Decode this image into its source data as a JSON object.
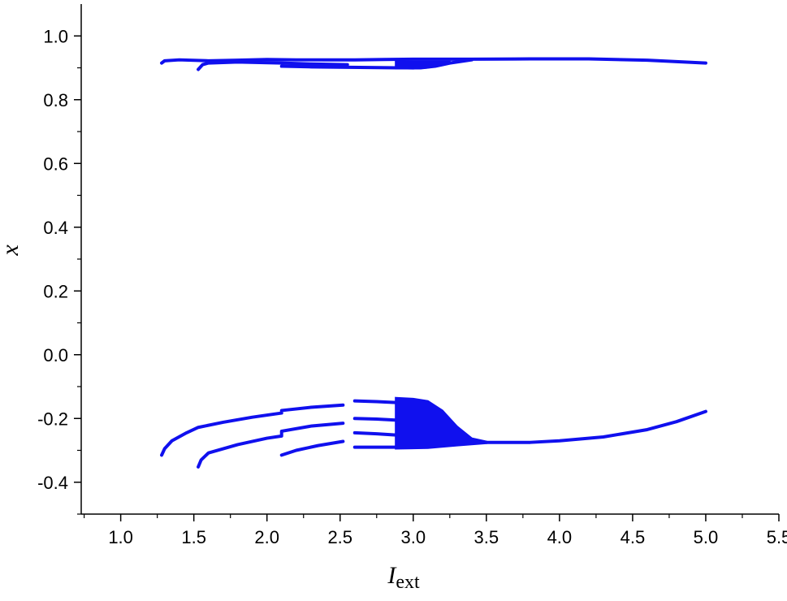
{
  "chart_data": {
    "type": "scatter",
    "title": "",
    "xlabel": "I",
    "xlabel_subscript": "ext",
    "ylabel": "x",
    "xlim": [
      0.73,
      5.5
    ],
    "ylim": [
      -0.5,
      1.1
    ],
    "x_ticks": [
      "1.0",
      "1.5",
      "2.0",
      "2.5",
      "3.0",
      "3.5",
      "4.0",
      "4.5",
      "5.0",
      "5.5"
    ],
    "y_ticks": [
      "-0.4",
      "-0.2",
      "0.0",
      "0.2",
      "0.4",
      "0.6",
      "0.8",
      "1.0"
    ],
    "grid": false,
    "legend": "none",
    "marker_color": "#1010ee",
    "series": [
      {
        "values": [
          {
            "x": 1.28,
            "y": 0.915
          },
          {
            "x": 1.3,
            "y": 0.922
          },
          {
            "x": 1.4,
            "y": 0.925
          },
          {
            "x": 1.6,
            "y": 0.922
          },
          {
            "x": 1.8,
            "y": 0.924
          },
          {
            "x": 2.0,
            "y": 0.926
          },
          {
            "x": 2.2,
            "y": 0.925
          },
          {
            "x": 2.4,
            "y": 0.925
          },
          {
            "x": 2.6,
            "y": 0.925
          },
          {
            "x": 2.8,
            "y": 0.926
          },
          {
            "x": 3.0,
            "y": 0.927
          },
          {
            "x": 3.4,
            "y": 0.927
          },
          {
            "x": 3.8,
            "y": 0.928
          },
          {
            "x": 4.2,
            "y": 0.928
          },
          {
            "x": 4.6,
            "y": 0.924
          },
          {
            "x": 5.0,
            "y": 0.915
          }
        ]
      },
      {
        "values": [
          {
            "x": 1.53,
            "y": 0.895
          },
          {
            "x": 1.56,
            "y": 0.91
          },
          {
            "x": 1.6,
            "y": 0.915
          },
          {
            "x": 1.8,
            "y": 0.918
          },
          {
            "x": 2.1,
            "y": 0.915
          },
          {
            "x": 2.3,
            "y": 0.912
          },
          {
            "x": 2.55,
            "y": 0.91
          }
        ]
      },
      {
        "values": [
          {
            "x": 2.1,
            "y": 0.905
          },
          {
            "x": 2.3,
            "y": 0.903
          },
          {
            "x": 2.5,
            "y": 0.902
          },
          {
            "x": 2.7,
            "y": 0.901
          },
          {
            "x": 2.9,
            "y": 0.9
          },
          {
            "x": 3.05,
            "y": 0.9
          },
          {
            "x": 3.15,
            "y": 0.905
          },
          {
            "x": 3.25,
            "y": 0.915
          },
          {
            "x": 3.4,
            "y": 0.925
          }
        ]
      },
      {
        "values": [
          {
            "x": 1.28,
            "y": -0.315
          },
          {
            "x": 1.3,
            "y": -0.295
          },
          {
            "x": 1.35,
            "y": -0.27
          },
          {
            "x": 1.45,
            "y": -0.245
          },
          {
            "x": 1.53,
            "y": -0.228
          },
          {
            "x": 1.7,
            "y": -0.212
          },
          {
            "x": 1.9,
            "y": -0.196
          },
          {
            "x": 2.1,
            "y": -0.183
          },
          {
            "x": 2.1,
            "y": -0.175
          },
          {
            "x": 2.3,
            "y": -0.165
          },
          {
            "x": 2.52,
            "y": -0.158
          }
        ]
      },
      {
        "values": [
          {
            "x": 1.53,
            "y": -0.352
          },
          {
            "x": 1.55,
            "y": -0.33
          },
          {
            "x": 1.6,
            "y": -0.308
          },
          {
            "x": 1.8,
            "y": -0.282
          },
          {
            "x": 2.0,
            "y": -0.262
          },
          {
            "x": 2.1,
            "y": -0.255
          },
          {
            "x": 2.1,
            "y": -0.24
          },
          {
            "x": 2.3,
            "y": -0.224
          },
          {
            "x": 2.52,
            "y": -0.215
          }
        ]
      },
      {
        "values": [
          {
            "x": 2.1,
            "y": -0.315
          },
          {
            "x": 2.2,
            "y": -0.3
          },
          {
            "x": 2.35,
            "y": -0.285
          },
          {
            "x": 2.52,
            "y": -0.272
          }
        ]
      },
      {
        "values": [
          {
            "x": 2.6,
            "y": -0.145
          },
          {
            "x": 2.75,
            "y": -0.147
          },
          {
            "x": 2.88,
            "y": -0.15
          }
        ]
      },
      {
        "values": [
          {
            "x": 2.6,
            "y": -0.2
          },
          {
            "x": 2.75,
            "y": -0.202
          },
          {
            "x": 2.88,
            "y": -0.205
          }
        ]
      },
      {
        "values": [
          {
            "x": 2.6,
            "y": -0.245
          },
          {
            "x": 2.75,
            "y": -0.248
          },
          {
            "x": 2.88,
            "y": -0.252
          }
        ]
      },
      {
        "values": [
          {
            "x": 2.6,
            "y": -0.29
          },
          {
            "x": 2.75,
            "y": -0.29
          },
          {
            "x": 2.88,
            "y": -0.29
          }
        ]
      },
      {
        "values": [
          {
            "x": 3.35,
            "y": -0.272
          },
          {
            "x": 3.5,
            "y": -0.275
          },
          {
            "x": 3.8,
            "y": -0.275
          },
          {
            "x": 4.0,
            "y": -0.27
          },
          {
            "x": 4.3,
            "y": -0.258
          },
          {
            "x": 4.6,
            "y": -0.235
          },
          {
            "x": 4.8,
            "y": -0.21
          },
          {
            "x": 5.0,
            "y": -0.178
          }
        ]
      }
    ],
    "chaotic_bands": [
      {
        "x_start": 2.88,
        "x_end": 3.5,
        "upper": [
          {
            "x": 2.88,
            "y": -0.135
          },
          {
            "x": 3.0,
            "y": -0.138
          },
          {
            "x": 3.1,
            "y": -0.145
          },
          {
            "x": 3.2,
            "y": -0.175
          },
          {
            "x": 3.3,
            "y": -0.225
          },
          {
            "x": 3.4,
            "y": -0.262
          },
          {
            "x": 3.5,
            "y": -0.272
          }
        ],
        "lower": [
          {
            "x": 2.88,
            "y": -0.295
          },
          {
            "x": 3.1,
            "y": -0.293
          },
          {
            "x": 3.3,
            "y": -0.285
          },
          {
            "x": 3.5,
            "y": -0.278
          }
        ]
      },
      {
        "x_start": 2.88,
        "x_end": 3.25,
        "upper": [
          {
            "x": 2.88,
            "y": 0.92
          },
          {
            "x": 3.25,
            "y": 0.92
          }
        ],
        "lower": [
          {
            "x": 2.88,
            "y": 0.898
          },
          {
            "x": 3.0,
            "y": 0.897
          },
          {
            "x": 3.1,
            "y": 0.9
          },
          {
            "x": 3.2,
            "y": 0.91
          },
          {
            "x": 3.25,
            "y": 0.918
          }
        ]
      }
    ]
  }
}
